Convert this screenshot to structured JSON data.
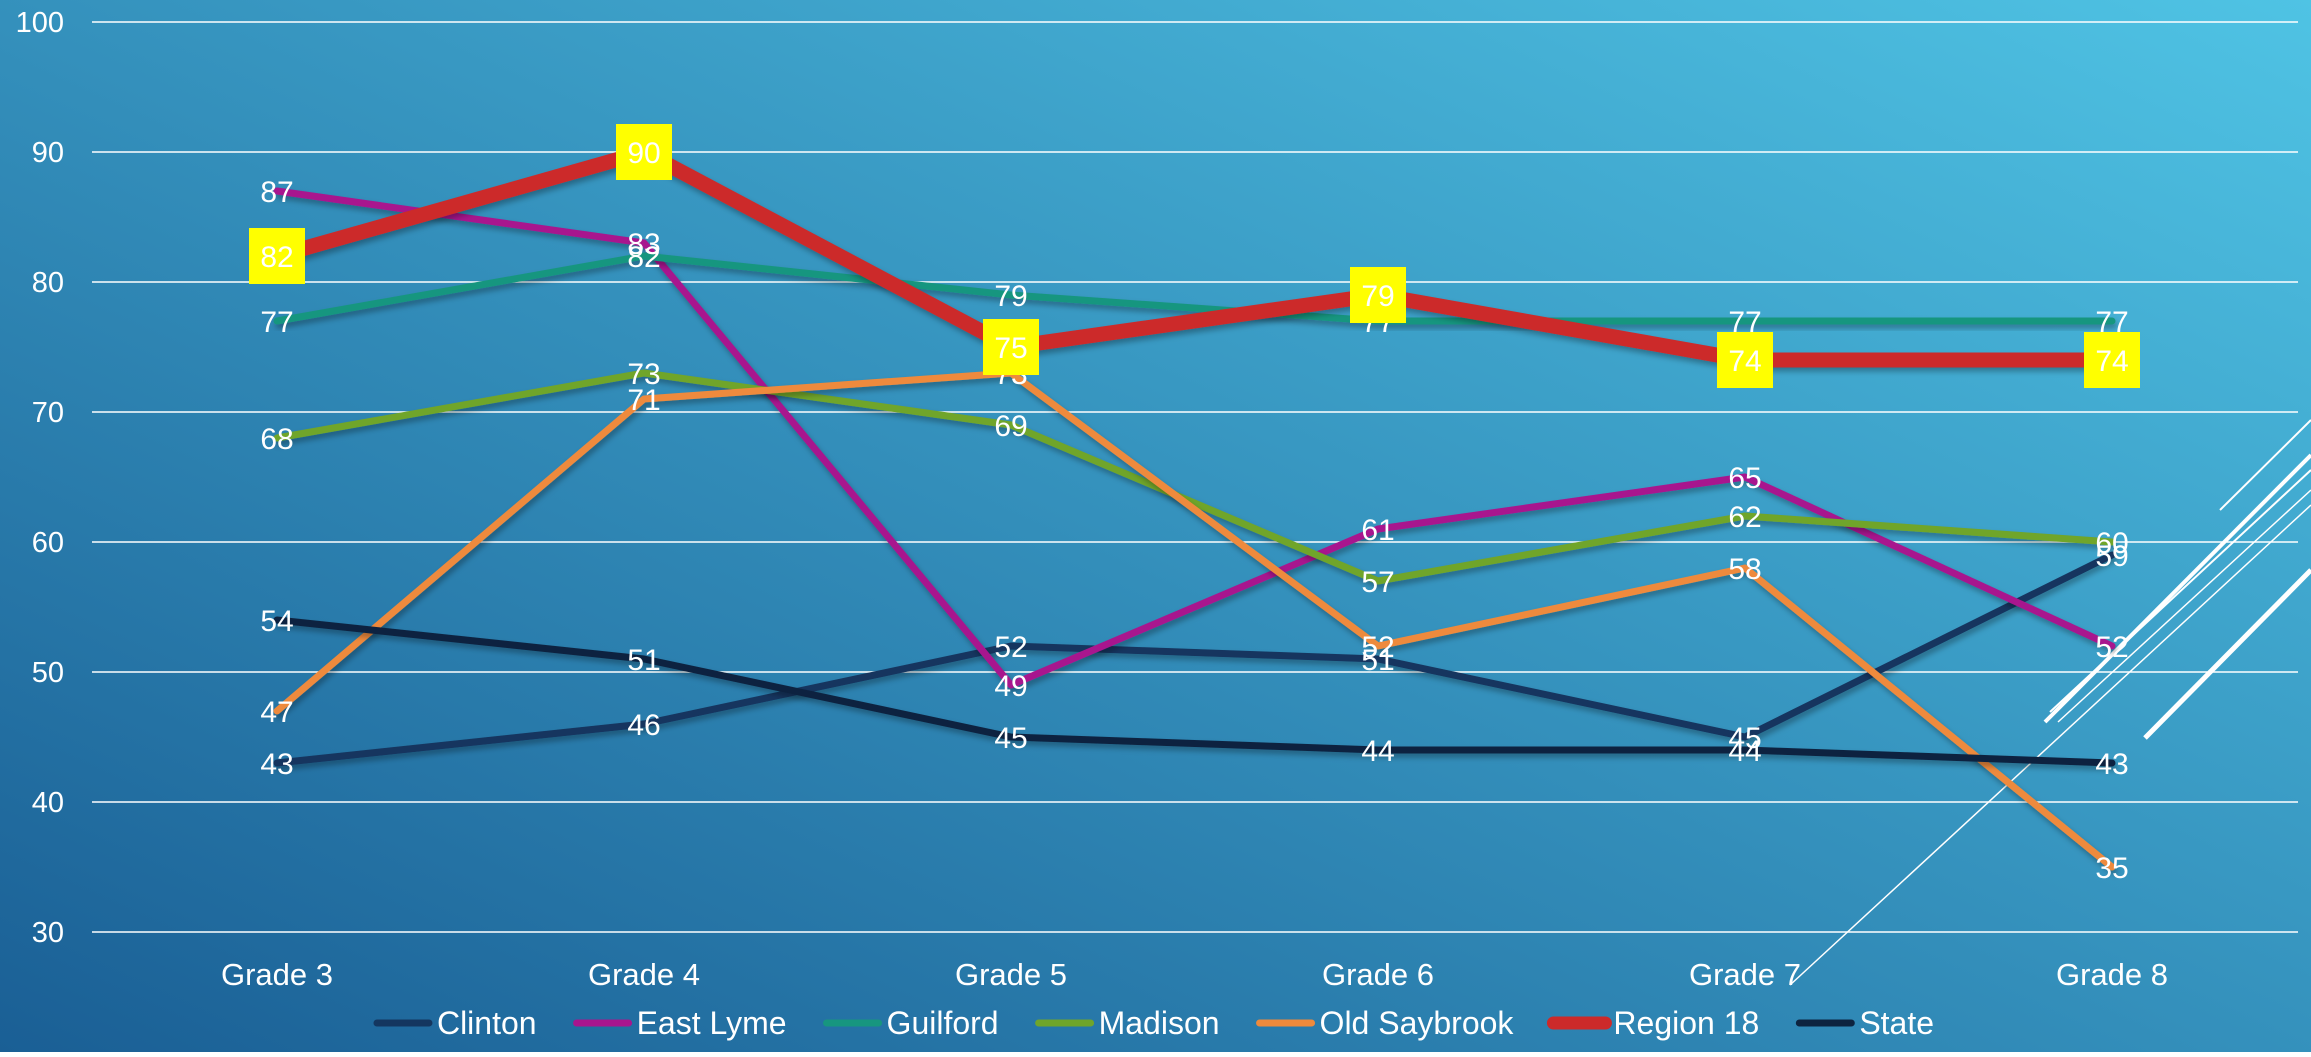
{
  "chart_data": {
    "type": "line",
    "title": "",
    "xlabel": "",
    "ylabel": "",
    "categories": [
      "Grade 3",
      "Grade 4",
      "Grade 5",
      "Grade 6",
      "Grade 7",
      "Grade 8"
    ],
    "ylim": [
      30,
      100
    ],
    "yticks": [
      "30",
      "40",
      "50",
      "60",
      "70",
      "80",
      "90",
      "100"
    ],
    "grid": true,
    "legend_position": "bottom",
    "data_labels": true,
    "series": [
      {
        "name": "Clinton",
        "color": "#14365f",
        "values": [
          43,
          46,
          52,
          51,
          45,
          59
        ]
      },
      {
        "name": "East Lyme",
        "color": "#a8158e",
        "values": [
          87,
          83,
          49,
          61,
          65,
          52
        ]
      },
      {
        "name": "Guilford",
        "color": "#17967f",
        "values": [
          77,
          82,
          79,
          77,
          77,
          77
        ]
      },
      {
        "name": "Madison",
        "color": "#6fa52b",
        "values": [
          68,
          73,
          69,
          57,
          62,
          60
        ]
      },
      {
        "name": "Old Saybrook",
        "color": "#ee8a3c",
        "values": [
          47,
          71,
          73,
          52,
          58,
          35
        ]
      },
      {
        "name": "Region 18",
        "color": "#cc2a2a",
        "highlight": true,
        "label_bg": "#ffff00",
        "values": [
          82,
          90,
          75,
          79,
          74,
          74
        ]
      },
      {
        "name": "State",
        "color": "#0d2440",
        "values": [
          54,
          51,
          45,
          44,
          44,
          43
        ]
      }
    ]
  },
  "colors": {
    "background_top": "#4fc3e4",
    "background_bottom": "#1a5f95",
    "grid": "#ffffff",
    "text": "#ffffff"
  }
}
